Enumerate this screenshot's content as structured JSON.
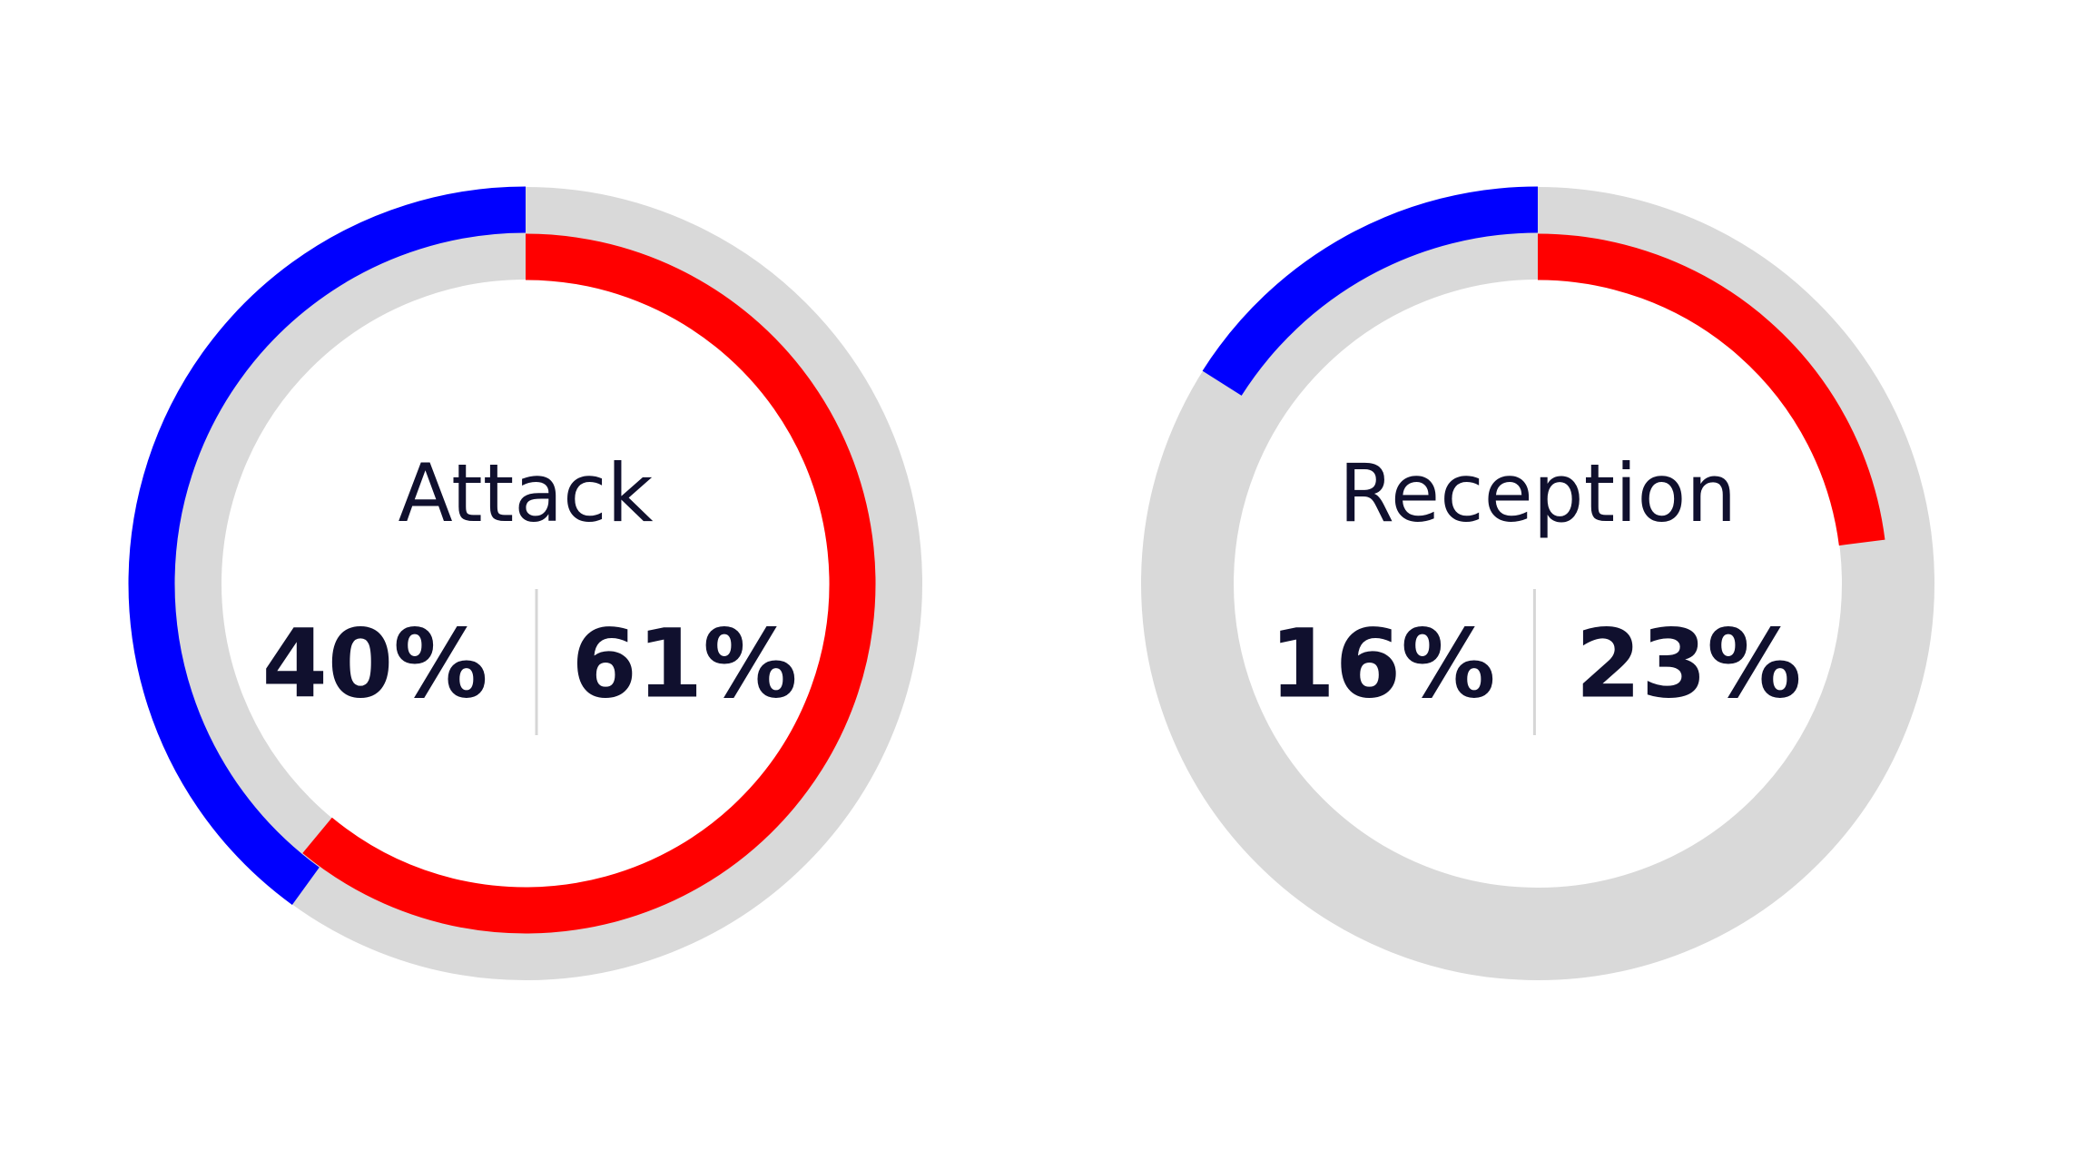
{
  "chart_data": [
    {
      "type": "gauge",
      "title": "Attack",
      "values": [
        40,
        61
      ],
      "value_labels": [
        "40%",
        "61%"
      ],
      "colors": [
        "#0000ff",
        "#ff0000"
      ],
      "track_color": "#d9d9d9",
      "ylim": [
        0,
        100
      ]
    },
    {
      "type": "gauge",
      "title": "Reception",
      "values": [
        16,
        23
      ],
      "value_labels": [
        "16%",
        "23%"
      ],
      "colors": [
        "#0000ff",
        "#ff0000"
      ],
      "track_color": "#d9d9d9",
      "ylim": [
        0,
        100
      ]
    }
  ]
}
